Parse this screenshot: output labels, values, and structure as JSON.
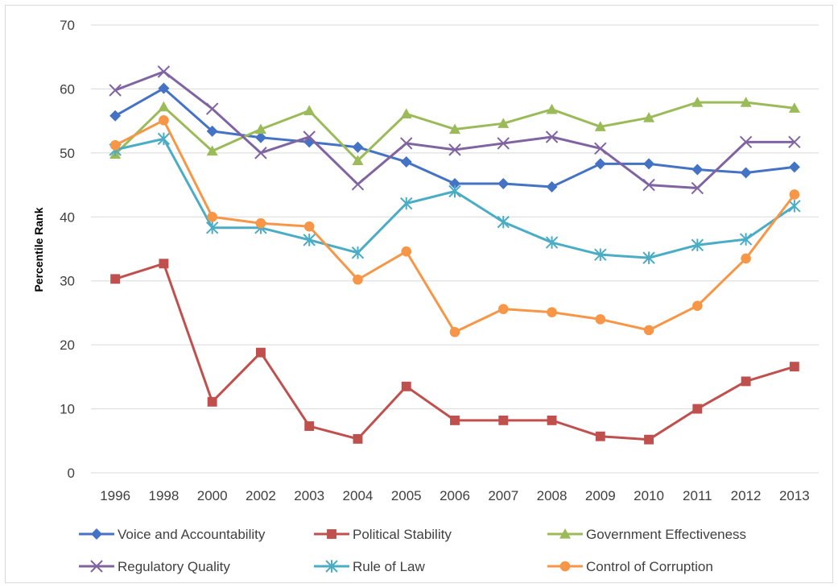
{
  "chart_data": {
    "type": "line",
    "title": "",
    "xlabel": "",
    "ylabel": "Percentile Rank",
    "ylim": [
      0,
      70
    ],
    "yticks": [
      0,
      10,
      20,
      30,
      40,
      50,
      60,
      70
    ],
    "grid": true,
    "legend_position": "bottom",
    "categories": [
      "1996",
      "1998",
      "2000",
      "2002",
      "2003",
      "2004",
      "2005",
      "2006",
      "2007",
      "2008",
      "2009",
      "2010",
      "2011",
      "2012",
      "2013"
    ],
    "series": [
      {
        "name": "Voice and Accountability",
        "color": "#4472c4",
        "marker": "diamond",
        "values": [
          55.8,
          60.1,
          53.4,
          52.4,
          51.7,
          50.9,
          48.6,
          45.2,
          45.2,
          44.7,
          48.3,
          48.3,
          47.4,
          46.9,
          47.8
        ]
      },
      {
        "name": "Political Stability",
        "color": "#c0504d",
        "marker": "square",
        "values": [
          30.3,
          32.7,
          11.1,
          18.8,
          7.3,
          5.3,
          13.5,
          8.2,
          8.2,
          8.2,
          5.7,
          5.2,
          10.0,
          14.3,
          16.6
        ]
      },
      {
        "name": "Government Effectiveness",
        "color": "#9bbb59",
        "marker": "triangle",
        "values": [
          49.8,
          57.2,
          50.3,
          53.7,
          56.6,
          48.8,
          56.1,
          53.7,
          54.6,
          56.8,
          54.1,
          55.5,
          57.9,
          57.9,
          57.0
        ]
      },
      {
        "name": "Regulatory Quality",
        "color": "#8064a2",
        "marker": "x",
        "values": [
          59.8,
          62.7,
          56.9,
          50.0,
          52.5,
          45.1,
          51.5,
          50.5,
          51.5,
          52.5,
          50.7,
          45.0,
          44.5,
          51.7,
          51.7
        ]
      },
      {
        "name": "Rule of Law",
        "color": "#4bacc6",
        "marker": "star",
        "values": [
          50.5,
          52.2,
          38.3,
          38.3,
          36.4,
          34.4,
          42.1,
          44.0,
          39.2,
          36.0,
          34.1,
          33.6,
          35.6,
          36.5,
          41.7
        ]
      },
      {
        "name": "Control of Corruption",
        "color": "#f79646",
        "marker": "circle",
        "values": [
          51.2,
          55.1,
          40.0,
          39.0,
          38.5,
          30.2,
          34.6,
          22.0,
          25.6,
          25.1,
          24.0,
          22.3,
          26.1,
          33.5,
          43.5
        ]
      }
    ]
  }
}
